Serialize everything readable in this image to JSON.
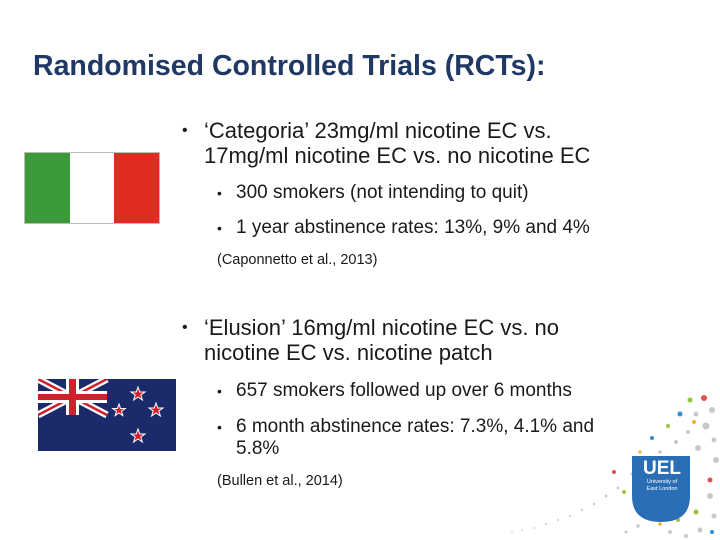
{
  "slide": {
    "title": "Randomised Controlled Trials (RCTs):",
    "section1": {
      "bullet_line1": "‘Categoria’ 23mg/ml nicotine EC vs.",
      "bullet_line2": "17mg/ml nicotine EC vs. no nicotine EC",
      "sub1": "300 smokers (not intending to quit)",
      "sub2": "1 year abstinence rates: 13%, 9% and 4%",
      "citation": "(Caponnetto et al., 2013)"
    },
    "section2": {
      "bullet_line1": "‘Elusion’ 16mg/ml nicotine EC vs. no",
      "bullet_line2": "nicotine EC vs. nicotine patch",
      "sub1": "657 smokers followed up over 6 months",
      "sub2_line1": "6 month abstinence rates: 7.3%, 4.1% and",
      "sub2_line2": "5.8%",
      "citation": "(Bullen et al., 2014)"
    },
    "bullet_glyph": "•",
    "logo": {
      "text": "UEL",
      "subtext_line1": "University of",
      "subtext_line2": "East London"
    }
  },
  "colors": {
    "title": "#1f3864",
    "italy_green": "#3a9a3a",
    "italy_red": "#e02b20",
    "nz_blue": "#1b2a6b",
    "nz_red": "#d21f2b",
    "uel_blue": "#2a6fb5"
  },
  "icons": {
    "flag1": "italy-flag-icon",
    "flag2": "new-zealand-flag-icon",
    "logo": "uel-logo-icon"
  }
}
